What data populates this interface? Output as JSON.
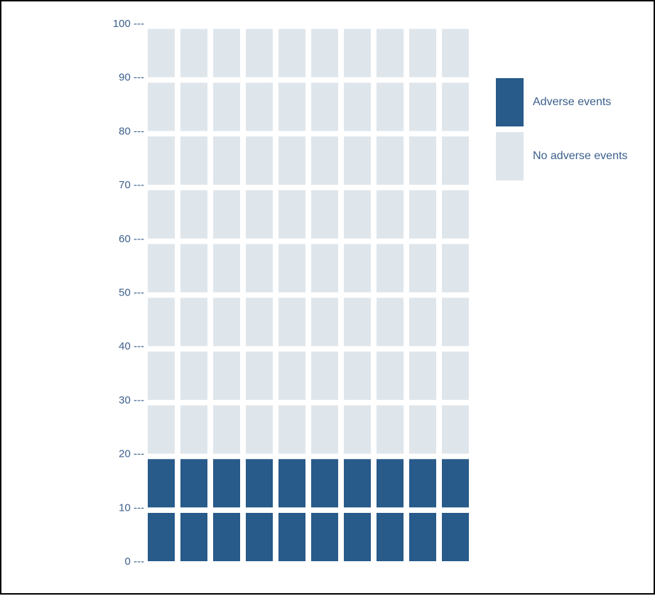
{
  "chart_data": {
    "type": "waffle",
    "ylim": [
      0,
      100
    ],
    "y_ticks": [
      "0 ---",
      "10 ---",
      "20 ---",
      "30 ---",
      "40 ---",
      "50 ---",
      "60 ---",
      "70 ---",
      "80 ---",
      "90 ---",
      "100 ---"
    ],
    "grid_columns": 10,
    "grid_rows": 10,
    "categories": [
      "Adverse events",
      "No adverse events"
    ],
    "values": [
      20,
      80
    ],
    "colors": {
      "Adverse events": "#285a8a",
      "No adverse events": "#dfe6eb"
    },
    "tick_color": "#3b5f8c",
    "legend_position": "top-right"
  }
}
